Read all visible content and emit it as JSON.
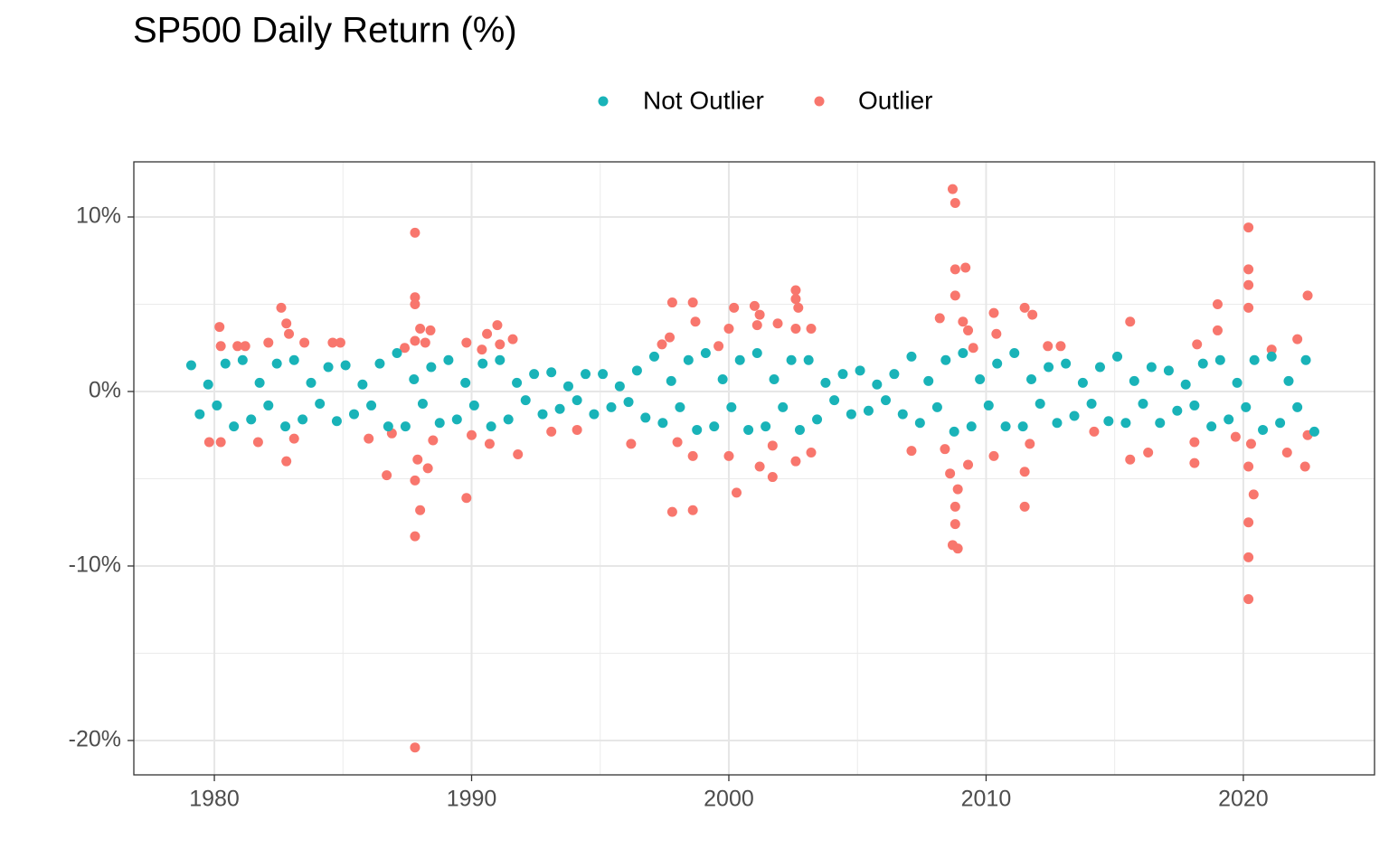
{
  "chart_data": {
    "type": "scatter",
    "title": "SP500 Daily Return (%)",
    "xlim": [
      1976.87,
      2025.1
    ],
    "ylim": [
      -21.97,
      13.16
    ],
    "xticks": [
      1980,
      1990,
      2000,
      2010,
      2020
    ],
    "yticks": [
      {
        "value": -20,
        "label": "-20%"
      },
      {
        "value": -10,
        "label": "-10%"
      },
      {
        "value": 0,
        "label": "0%"
      },
      {
        "value": 10,
        "label": "10%"
      }
    ],
    "x_minor_grid": [
      1985,
      1995,
      2005,
      2015
    ],
    "y_minor_grid": [
      -15,
      -5,
      5
    ],
    "grid": true,
    "legend": "top",
    "series": [
      {
        "name": "Not Outlier",
        "color": "#19b3b8",
        "x": [
          1979.1,
          1979.43,
          1979.76,
          1980.1,
          1980.43,
          1980.76,
          1981.1,
          1981.43,
          1981.76,
          1982.1,
          1982.43,
          1982.76,
          1983.1,
          1983.43,
          1983.76,
          1984.1,
          1984.43,
          1984.76,
          1985.1,
          1985.43,
          1985.76,
          1986.1,
          1986.43,
          1986.76,
          1987.1,
          1987.43,
          1987.76,
          1988.1,
          1988.43,
          1988.76,
          1989.1,
          1989.43,
          1989.76,
          1990.1,
          1990.43,
          1990.76,
          1991.1,
          1991.43,
          1991.76,
          1992.1,
          1992.43,
          1992.76,
          1993.1,
          1993.43,
          1993.76,
          1994.1,
          1994.43,
          1994.76,
          1995.1,
          1995.43,
          1995.76,
          1996.1,
          1996.43,
          1996.76,
          1997.1,
          1997.43,
          1997.76,
          1998.1,
          1998.43,
          1998.76,
          1999.1,
          1999.43,
          1999.76,
          2000.1,
          2000.43,
          2000.76,
          2001.1,
          2001.43,
          2001.76,
          2002.1,
          2002.43,
          2002.76,
          2003.1,
          2003.43,
          2003.76,
          2004.1,
          2004.43,
          2004.76,
          2005.1,
          2005.43,
          2005.76,
          2006.1,
          2006.43,
          2006.76,
          2007.1,
          2007.43,
          2007.76,
          2008.1,
          2008.43,
          2008.76,
          2009.1,
          2009.43,
          2009.76,
          2010.1,
          2010.43,
          2010.76,
          2011.1,
          2011.43,
          2011.76,
          2012.1,
          2012.43,
          2012.76,
          2013.1,
          2013.43,
          2013.76,
          2014.1,
          2014.43,
          2014.76,
          2015.1,
          2015.43,
          2015.76,
          2016.1,
          2016.43,
          2016.76,
          2017.1,
          2017.43,
          2017.76,
          2018.1,
          2018.43,
          2018.76,
          2019.1,
          2019.43,
          2019.76,
          2020.1,
          2020.43,
          2020.76,
          2021.1,
          2021.43,
          2021.76,
          2022.1,
          2022.43,
          2022.76
        ],
        "values": [
          1.5,
          -1.3,
          0.4,
          -0.8,
          1.6,
          -2.0,
          1.8,
          -1.6,
          0.5,
          -0.8,
          1.6,
          -2.0,
          1.8,
          -1.6,
          0.5,
          -0.7,
          1.4,
          -1.7,
          1.5,
          -1.3,
          0.4,
          -0.8,
          1.6,
          -2.0,
          2.2,
          -2.0,
          0.7,
          -0.7,
          1.4,
          -1.8,
          1.8,
          -1.6,
          0.5,
          -0.8,
          1.6,
          -2.0,
          1.8,
          -1.6,
          0.5,
          -0.5,
          1.0,
          -1.3,
          1.1,
          -1.0,
          0.3,
          -0.5,
          1.0,
          -1.3,
          1.0,
          -0.9,
          0.3,
          -0.6,
          1.2,
          -1.5,
          2.0,
          -1.8,
          0.6,
          -0.9,
          1.8,
          -2.2,
          2.2,
          -2.0,
          0.7,
          -0.9,
          1.8,
          -2.2,
          2.2,
          -2.0,
          0.7,
          -0.9,
          1.8,
          -2.2,
          1.8,
          -1.6,
          0.5,
          -0.5,
          1.0,
          -1.3,
          1.2,
          -1.1,
          0.4,
          -0.5,
          1.0,
          -1.3,
          2.0,
          -1.8,
          0.6,
          -0.9,
          1.8,
          -2.3,
          2.2,
          -2.0,
          0.7,
          -0.8,
          1.6,
          -2.0,
          2.2,
          -2.0,
          0.7,
          -0.7,
          1.4,
          -1.8,
          1.6,
          -1.4,
          0.5,
          -0.7,
          1.4,
          -1.7,
          2.0,
          -1.8,
          0.6,
          -0.7,
          1.4,
          -1.8,
          1.2,
          -1.1,
          0.4,
          -0.8,
          1.6,
          -2.0,
          1.8,
          -1.6,
          0.5,
          -0.9,
          1.8,
          -2.2,
          2.0,
          -1.8,
          0.6,
          -0.9,
          1.8,
          -2.3
        ]
      },
      {
        "name": "Outlier",
        "color": "#f8766d",
        "x": [
          1980.2,
          1980.25,
          1979.8,
          1980.25,
          1980.9,
          1981.2,
          1981.7,
          1982.1,
          1982.6,
          1982.8,
          1982.8,
          1982.9,
          1983.1,
          1983.5,
          1984.6,
          1984.9,
          1986.0,
          1986.7,
          1986.9,
          1987.4,
          1987.8,
          1987.8,
          1987.8,
          1987.8,
          1987.8,
          1987.8,
          1987.8,
          1987.9,
          1988.0,
          1988.0,
          1988.2,
          1988.3,
          1988.4,
          1988.5,
          1989.8,
          1989.8,
          1990.0,
          1990.4,
          1990.6,
          1990.7,
          1991.0,
          1991.1,
          1991.6,
          1991.8,
          1993.1,
          1994.1,
          1996.2,
          1997.4,
          1997.7,
          1997.8,
          1997.8,
          1998.0,
          1998.6,
          1998.7,
          1998.6,
          1998.6,
          1999.6,
          2000.0,
          2000.2,
          2000.0,
          2000.3,
          2001.0,
          2001.1,
          2001.2,
          2001.2,
          2001.7,
          2001.7,
          2001.9,
          2002.6,
          2002.6,
          2002.7,
          2002.6,
          2002.6,
          2003.2,
          2003.2,
          2007.1,
          2008.2,
          2008.4,
          2008.7,
          2008.8,
          2008.8,
          2008.8,
          2008.7,
          2008.9,
          2008.8,
          2008.8,
          2008.6,
          2008.9,
          2009.2,
          2009.1,
          2009.3,
          2009.3,
          2009.5,
          2010.3,
          2010.4,
          2010.3,
          2011.5,
          2011.8,
          2011.5,
          2011.5,
          2011.7,
          2012.4,
          2012.9,
          2014.2,
          2015.6,
          2015.6,
          2016.3,
          2018.1,
          2018.1,
          2018.2,
          2019.0,
          2019.0,
          2019.7,
          2020.2,
          2020.2,
          2020.2,
          2020.2,
          2020.2,
          2020.2,
          2020.2,
          2020.4,
          2020.2,
          2020.3,
          2021.1,
          2021.7,
          2022.1,
          2022.4,
          2022.5,
          2022.5
        ],
        "values": [
          3.7,
          2.6,
          -2.9,
          -2.9,
          2.6,
          2.6,
          -2.9,
          2.8,
          4.8,
          3.9,
          -4.0,
          3.3,
          -2.7,
          2.8,
          2.8,
          2.8,
          -2.7,
          -4.8,
          -2.4,
          2.5,
          9.1,
          5.4,
          5.0,
          2.9,
          -5.1,
          -8.3,
          -20.4,
          -3.9,
          3.6,
          -6.8,
          2.8,
          -4.4,
          3.5,
          -2.8,
          2.8,
          -6.1,
          -2.5,
          2.4,
          3.3,
          -3.0,
          3.8,
          2.7,
          3.0,
          -3.6,
          -2.3,
          -2.2,
          -3.0,
          2.7,
          3.1,
          5.1,
          -6.9,
          -2.9,
          5.1,
          4.0,
          -6.8,
          -3.7,
          2.6,
          3.6,
          4.8,
          -3.7,
          -5.8,
          4.9,
          3.8,
          4.4,
          -4.3,
          -4.9,
          -3.1,
          3.9,
          5.8,
          5.3,
          4.8,
          3.6,
          -4.0,
          -3.5,
          3.6,
          -3.4,
          4.2,
          -3.3,
          11.6,
          10.8,
          7.0,
          5.5,
          -8.8,
          -9.0,
          -7.6,
          -6.6,
          -4.7,
          -5.6,
          7.1,
          4.0,
          3.5,
          -4.2,
          2.5,
          4.5,
          3.3,
          -3.7,
          4.8,
          4.4,
          -6.6,
          -4.6,
          -3.0,
          2.6,
          2.6,
          -2.3,
          4.0,
          -3.9,
          -3.5,
          -2.9,
          -4.1,
          2.7,
          5.0,
          3.5,
          -2.6,
          9.4,
          7.0,
          6.1,
          4.8,
          -11.9,
          -9.5,
          -7.5,
          -5.9,
          -4.3,
          -3.0,
          2.4,
          -3.5,
          3.0,
          -4.3,
          5.5,
          -2.5
        ]
      }
    ]
  }
}
